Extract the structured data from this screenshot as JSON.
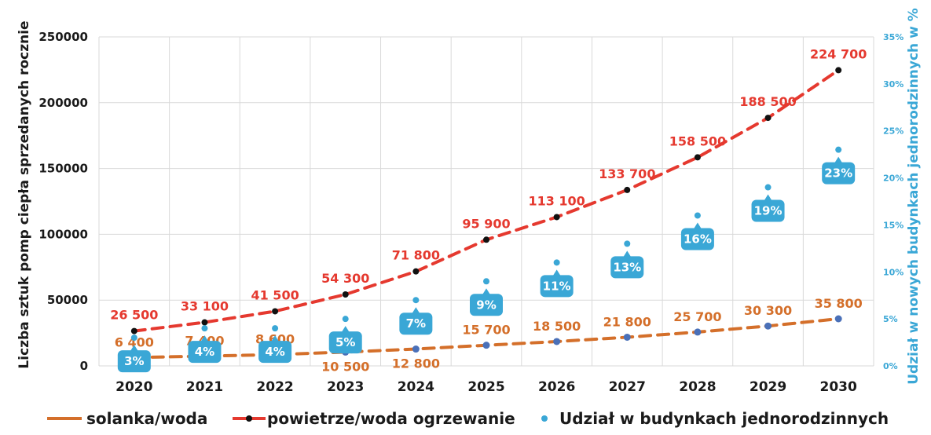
{
  "chart_data": {
    "type": "line",
    "categories": [
      "2020",
      "2021",
      "2022",
      "2023",
      "2024",
      "2025",
      "2026",
      "2027",
      "2028",
      "2029",
      "2030"
    ],
    "ylabel": "Liczba  sztuk pomp ciepła sprzedanych rocznie",
    "y2label": "Udział w nowych budynkach jednorodzinnych w %",
    "ylim": [
      0,
      250000
    ],
    "y2lim": [
      0,
      35
    ],
    "yticks": [
      "0",
      "50000",
      "100000",
      "150000",
      "200000",
      "250000"
    ],
    "y2ticks": [
      "0%",
      "5%",
      "10%",
      "15%",
      "20%",
      "25%",
      "30%",
      "35%"
    ],
    "grid": true,
    "legend_position": "bottom",
    "series": [
      {
        "name": "solanka/woda",
        "color": "#d46f2a",
        "axis": "left",
        "values": [
          6400,
          7400,
          8600,
          10500,
          12800,
          15700,
          18500,
          21800,
          25700,
          30300,
          35800
        ],
        "labels": [
          "6 400",
          "7 400",
          "8 600",
          "10 500",
          "12 800",
          "15 700",
          "18 500",
          "21 800",
          "25 700",
          "30 300",
          "35 800"
        ]
      },
      {
        "name": "powietrze/woda ogrzewanie",
        "color": "#e5392f",
        "axis": "left",
        "values": [
          26500,
          33100,
          41500,
          54300,
          71800,
          95900,
          113100,
          133700,
          158500,
          188500,
          224700
        ],
        "labels": [
          "26 500",
          "33 100",
          "41 500",
          "54 300",
          "71 800",
          "95 900",
          "113 100",
          "133 700",
          "158 500",
          "188 500",
          "224 700"
        ]
      },
      {
        "name": "Udział w budynkach jednorodzinnych",
        "color": "#3aa7d6",
        "axis": "right",
        "values": [
          3,
          4,
          4,
          5,
          7,
          9,
          11,
          13,
          16,
          19,
          23
        ],
        "labels": [
          "3%",
          "4%",
          "4%",
          "5%",
          "7%",
          "9%",
          "11%",
          "13%",
          "16%",
          "19%",
          "23%"
        ]
      }
    ]
  }
}
